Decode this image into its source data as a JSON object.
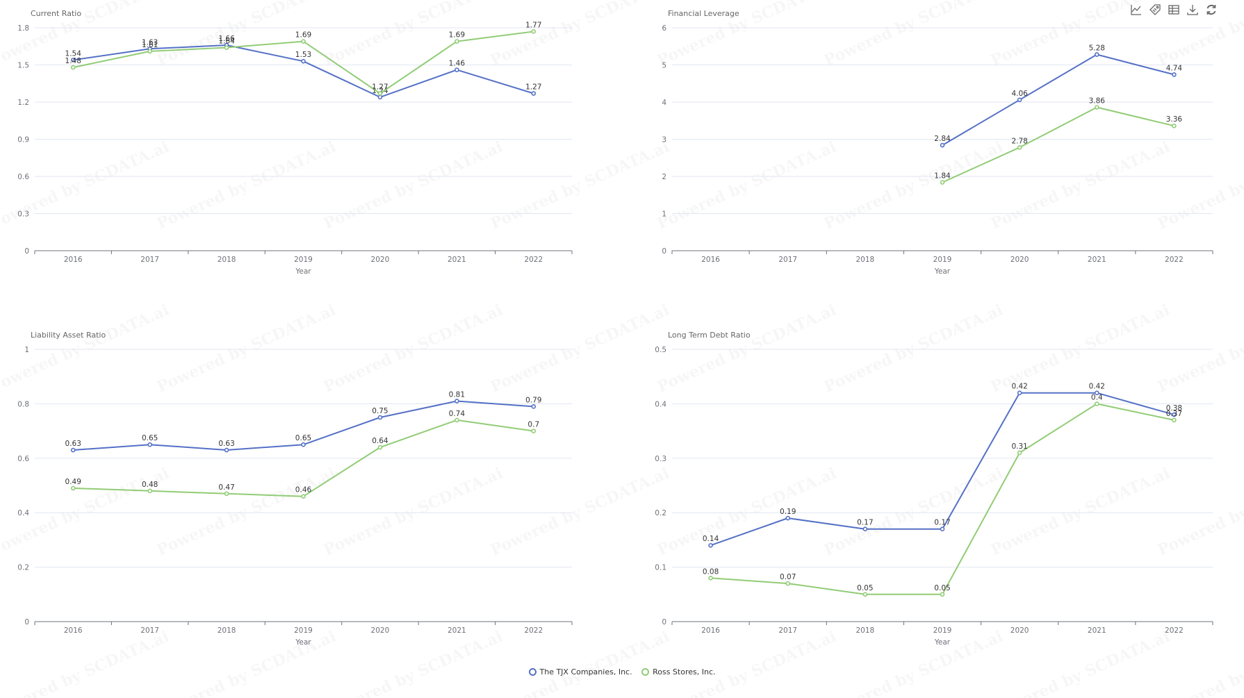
{
  "toolbar": {
    "icons": [
      {
        "name": "line-chart-icon",
        "title": "Switch to Line"
      },
      {
        "name": "tag-icon",
        "title": "Toggle Labels"
      },
      {
        "name": "data-view-icon",
        "title": "Data View"
      },
      {
        "name": "download-icon",
        "title": "Save as Image"
      },
      {
        "name": "refresh-icon",
        "title": "Restore"
      }
    ]
  },
  "watermark": {
    "text": "Powered by SCDATA.ai"
  },
  "legend": {
    "items": [
      {
        "label": "The TJX Companies, Inc.",
        "color": "#5470c6"
      },
      {
        "label": "Ross Stores, Inc.",
        "color": "#91cc75"
      }
    ]
  },
  "colors": {
    "tjx": "#5470c6",
    "ross": "#91cc75",
    "grid": "#e0e6f1",
    "axis": "#6e7079"
  },
  "chart_data": [
    {
      "type": "line",
      "title": "Current Ratio",
      "xlabel": "Year",
      "ylabel": "",
      "categories": [
        "2016",
        "2017",
        "2018",
        "2019",
        "2020",
        "2021",
        "2022"
      ],
      "ylim": [
        0,
        1.8
      ],
      "yticks": [
        "0",
        "0.3",
        "0.6",
        "0.9",
        "1.2",
        "1.5",
        "1.8"
      ],
      "grid": true,
      "series": [
        {
          "name": "The TJX Companies, Inc.",
          "values": [
            1.54,
            1.63,
            1.66,
            1.53,
            1.24,
            1.46,
            1.27
          ]
        },
        {
          "name": "Ross Stores, Inc.",
          "values": [
            1.48,
            1.61,
            1.64,
            1.69,
            1.27,
            1.69,
            1.77
          ]
        }
      ]
    },
    {
      "type": "line",
      "title": "Financial Leverage",
      "xlabel": "Year",
      "ylabel": "",
      "categories": [
        "2016",
        "2017",
        "2018",
        "2019",
        "2020",
        "2021",
        "2022"
      ],
      "ylim": [
        0,
        6
      ],
      "yticks": [
        "0",
        "1",
        "2",
        "3",
        "4",
        "5",
        "6"
      ],
      "grid": true,
      "series": [
        {
          "name": "The TJX Companies, Inc.",
          "values": [
            null,
            null,
            null,
            2.84,
            4.06,
            5.28,
            4.74
          ]
        },
        {
          "name": "Ross Stores, Inc.",
          "values": [
            null,
            null,
            null,
            1.84,
            2.78,
            3.86,
            3.36
          ]
        }
      ]
    },
    {
      "type": "line",
      "title": "Liability Asset Ratio",
      "xlabel": "Year",
      "ylabel": "",
      "categories": [
        "2016",
        "2017",
        "2018",
        "2019",
        "2020",
        "2021",
        "2022"
      ],
      "ylim": [
        0,
        1
      ],
      "yticks": [
        "0",
        "0.2",
        "0.4",
        "0.6",
        "0.8",
        "1"
      ],
      "grid": true,
      "series": [
        {
          "name": "The TJX Companies, Inc.",
          "values": [
            0.63,
            0.65,
            0.63,
            0.65,
            0.75,
            0.81,
            0.79
          ]
        },
        {
          "name": "Ross Stores, Inc.",
          "values": [
            0.49,
            0.48,
            0.47,
            0.46,
            0.64,
            0.74,
            0.7
          ]
        }
      ]
    },
    {
      "type": "line",
      "title": "Long Term Debt Ratio",
      "xlabel": "Year",
      "ylabel": "",
      "categories": [
        "2016",
        "2017",
        "2018",
        "2019",
        "2020",
        "2021",
        "2022"
      ],
      "ylim": [
        0,
        0.5
      ],
      "yticks": [
        "0",
        "0.1",
        "0.2",
        "0.3",
        "0.4",
        "0.5"
      ],
      "grid": true,
      "series": [
        {
          "name": "The TJX Companies, Inc.",
          "values": [
            0.14,
            0.19,
            0.17,
            0.17,
            0.42,
            0.42,
            0.38
          ]
        },
        {
          "name": "Ross Stores, Inc.",
          "values": [
            0.08,
            0.07,
            0.05,
            0.05,
            0.31,
            0.4,
            0.37
          ]
        }
      ]
    }
  ]
}
